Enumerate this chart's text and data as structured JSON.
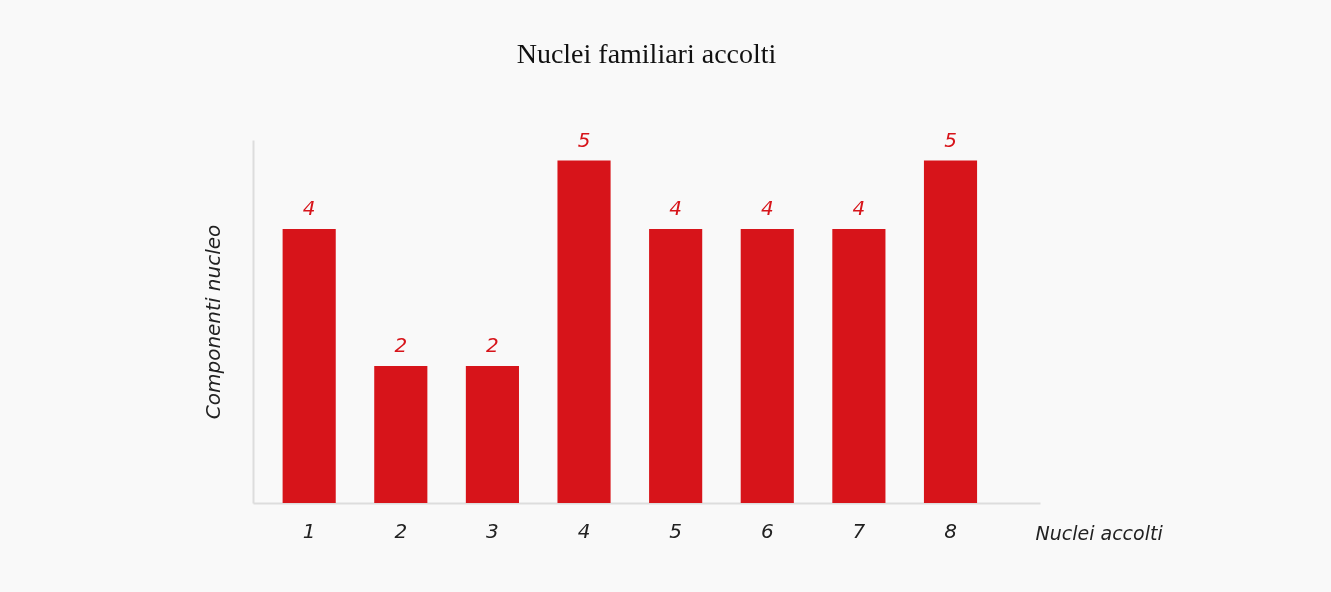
{
  "chart_data": {
    "type": "bar",
    "title": "Nuclei familiari accolti",
    "xlabel": "Nuclei accolti",
    "ylabel": "Componenti nucleo",
    "categories": [
      "1",
      "2",
      "3",
      "4",
      "5",
      "6",
      "7",
      "8"
    ],
    "values": [
      4,
      2,
      2,
      5,
      4,
      4,
      4,
      5
    ],
    "color": "#d7141a",
    "data_labels": true,
    "grid": false
  }
}
